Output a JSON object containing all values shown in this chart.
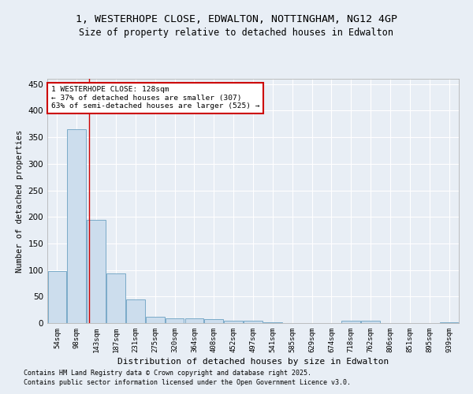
{
  "title1": "1, WESTERHOPE CLOSE, EDWALTON, NOTTINGHAM, NG12 4GP",
  "title2": "Size of property relative to detached houses in Edwalton",
  "xlabel": "Distribution of detached houses by size in Edwalton",
  "ylabel": "Number of detached properties",
  "categories": [
    "54sqm",
    "98sqm",
    "143sqm",
    "187sqm",
    "231sqm",
    "275sqm",
    "320sqm",
    "364sqm",
    "408sqm",
    "452sqm",
    "497sqm",
    "541sqm",
    "585sqm",
    "629sqm",
    "674sqm",
    "718sqm",
    "762sqm",
    "806sqm",
    "851sqm",
    "895sqm",
    "939sqm"
  ],
  "values": [
    98,
    365,
    195,
    93,
    44,
    12,
    9,
    9,
    7,
    5,
    5,
    1,
    0,
    0,
    0,
    4,
    5,
    0,
    0,
    0,
    1
  ],
  "bar_color": "#ccdded",
  "bar_edge_color": "#7aaac8",
  "bg_color": "#e8eef5",
  "grid_color": "#ffffff",
  "red_line_x": 1.62,
  "annotation_text": "1 WESTERHOPE CLOSE: 128sqm\n← 37% of detached houses are smaller (307)\n63% of semi-detached houses are larger (525) →",
  "annotation_box_color": "#ffffff",
  "annotation_border_color": "#cc0000",
  "footer1": "Contains HM Land Registry data © Crown copyright and database right 2025.",
  "footer2": "Contains public sector information licensed under the Open Government Licence v3.0.",
  "ylim": [
    0,
    460
  ],
  "yticks": [
    0,
    50,
    100,
    150,
    200,
    250,
    300,
    350,
    400,
    450
  ]
}
